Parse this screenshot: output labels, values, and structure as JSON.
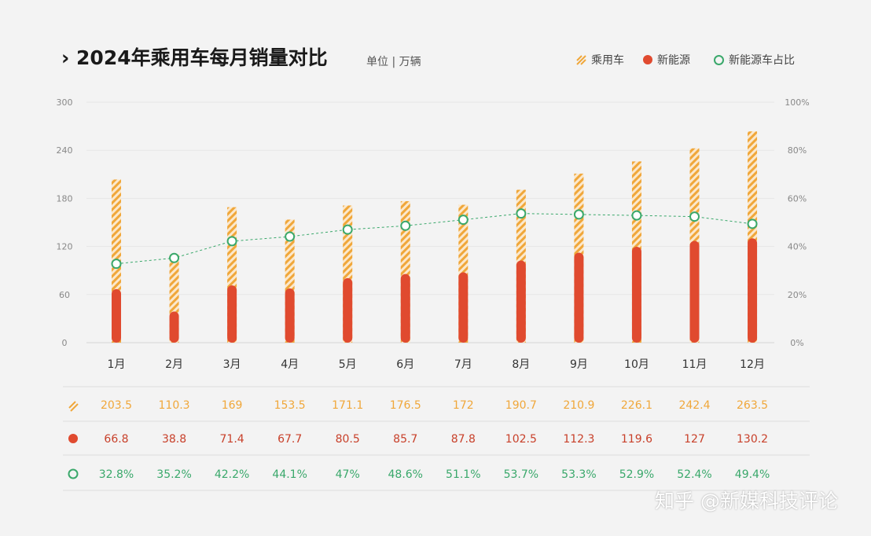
{
  "title": "2024年乘用车每月销量对比",
  "title_prefix": "›",
  "unit": "单位 | 万辆",
  "watermark": "知乎 @新媒科技评论",
  "colors": {
    "passenger": "#f0a73a",
    "nev": "#e04a2f",
    "share": "#3aa86b"
  },
  "chart_data": {
    "type": "bar",
    "title": "2024年乘用车每月销量对比",
    "categories": [
      "1月",
      "2月",
      "3月",
      "4月",
      "5月",
      "6月",
      "7月",
      "8月",
      "9月",
      "10月",
      "11月",
      "12月"
    ],
    "series": [
      {
        "name": "乘用车",
        "type": "bar",
        "style": "hatched",
        "axis": "left",
        "values": [
          203.5,
          110.3,
          169,
          153.5,
          171.1,
          176.5,
          172,
          190.7,
          210.9,
          226.1,
          242.4,
          263.5
        ],
        "labels": [
          "203.5",
          "110.3",
          "169",
          "153.5",
          "171.1",
          "176.5",
          "172",
          "190.7",
          "210.9",
          "226.1",
          "242.4",
          "263.5"
        ]
      },
      {
        "name": "新能源",
        "type": "bar",
        "axis": "left",
        "values": [
          66.8,
          38.8,
          71.4,
          67.7,
          80.5,
          85.7,
          87.8,
          102.5,
          112.3,
          119.6,
          127,
          130.2
        ],
        "labels": [
          "66.8",
          "38.8",
          "71.4",
          "67.7",
          "80.5",
          "85.7",
          "87.8",
          "102.5",
          "112.3",
          "119.6",
          "127",
          "130.2"
        ]
      },
      {
        "name": "新能源车占比",
        "type": "line",
        "axis": "right",
        "values": [
          32.8,
          35.2,
          42.2,
          44.1,
          47,
          48.6,
          51.1,
          53.7,
          53.3,
          52.9,
          52.4,
          49.4
        ],
        "labels": [
          "32.8%",
          "35.2%",
          "42.2%",
          "44.1%",
          "47%",
          "48.6%",
          "51.1%",
          "53.7%",
          "53.3%",
          "52.9%",
          "52.4%",
          "49.4%"
        ]
      }
    ],
    "ylim": [
      0,
      300
    ],
    "y2lim": [
      0,
      100
    ],
    "yticks": [
      "0",
      "60",
      "120",
      "180",
      "240",
      "300"
    ],
    "y2ticks": [
      "0%",
      "20%",
      "40%",
      "60%",
      "80%",
      "100%"
    ],
    "grid": true,
    "legend": "top-right"
  }
}
